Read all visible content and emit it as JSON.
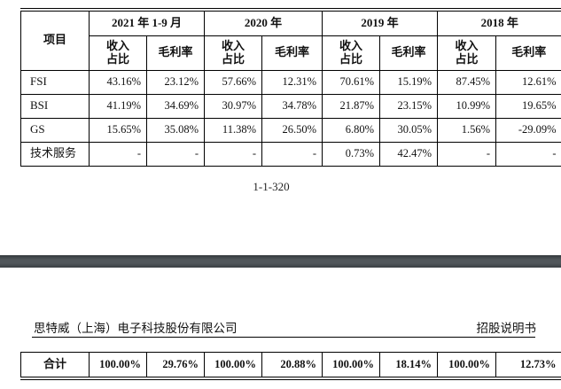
{
  "table": {
    "item_header": "项目",
    "year_headers": [
      "2021 年 1-9 月",
      "2020 年",
      "2019 年",
      "2018 年"
    ],
    "sub_header_revenue": "收入\n占比",
    "sub_header_margin": "毛利率",
    "rows": [
      {
        "label": "FSI",
        "values": [
          "43.16%",
          "23.12%",
          "57.66%",
          "12.31%",
          "70.61%",
          "15.19%",
          "87.45%",
          "12.61%"
        ]
      },
      {
        "label": "BSI",
        "values": [
          "41.19%",
          "34.69%",
          "30.97%",
          "34.78%",
          "21.87%",
          "23.15%",
          "10.99%",
          "19.65%"
        ]
      },
      {
        "label": "GS",
        "values": [
          "15.65%",
          "35.08%",
          "11.38%",
          "26.50%",
          "6.80%",
          "30.05%",
          "1.56%",
          "-29.09%"
        ]
      },
      {
        "label": "技术服务",
        "values": [
          "-",
          "-",
          "-",
          "-",
          "0.73%",
          "42.47%",
          "-",
          "-"
        ]
      }
    ],
    "total_row": {
      "label": "合计",
      "values": [
        "100.00%",
        "29.76%",
        "100.00%",
        "20.88%",
        "100.00%",
        "18.14%",
        "100.00%",
        "12.73%"
      ]
    }
  },
  "page_number": "1-1-320",
  "page_header": {
    "company": "思特威（上海）电子科技股份有限公司",
    "doc_type": "招股说明书"
  },
  "colors": {
    "separator_bar": "#51575b",
    "table_border": "#000000"
  }
}
